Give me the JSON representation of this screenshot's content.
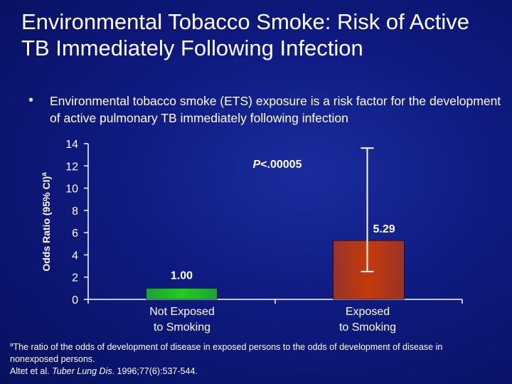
{
  "slide": {
    "title": "Environmental Tobacco Smoke: Risk of Active TB Immediately Following Infection",
    "bullet": "Environmental tobacco smoke (ETS) exposure is a risk factor for the development of active pulmonary TB immediately following infection",
    "footnote_sup": "a",
    "footnote_line1": "The ratio of the odds of development of disease in exposed persons to the odds of development of disease in nonexposed persons.",
    "citation_authors": "Altet et al. ",
    "citation_journal": "Tuber Lung Dis",
    "citation_rest": ". 1996;77(6):537-544."
  },
  "colors": {
    "background": "#0f1a80",
    "bar_not_exposed": "#22cc22",
    "bar_exposed": "#c53a0a"
  },
  "chart_data": {
    "type": "bar",
    "ylabel_main": "Odds Ratio (95% CI)",
    "ylabel_sup": "a",
    "ylim": [
      0,
      14
    ],
    "yticks": [
      0,
      2,
      4,
      6,
      8,
      10,
      12,
      14
    ],
    "grid": false,
    "categories": [
      {
        "line1": "Not Exposed",
        "line2": "to Smoking"
      },
      {
        "line1": "Exposed",
        "line2": "to Smoking"
      }
    ],
    "values": [
      1.0,
      5.29
    ],
    "value_labels": [
      "1.00",
      "5.29"
    ],
    "error_bars": [
      null,
      {
        "low": 2.5,
        "high": 13.6
      }
    ],
    "annotation": {
      "p_italic": "P",
      "rest": "<.00005"
    }
  }
}
